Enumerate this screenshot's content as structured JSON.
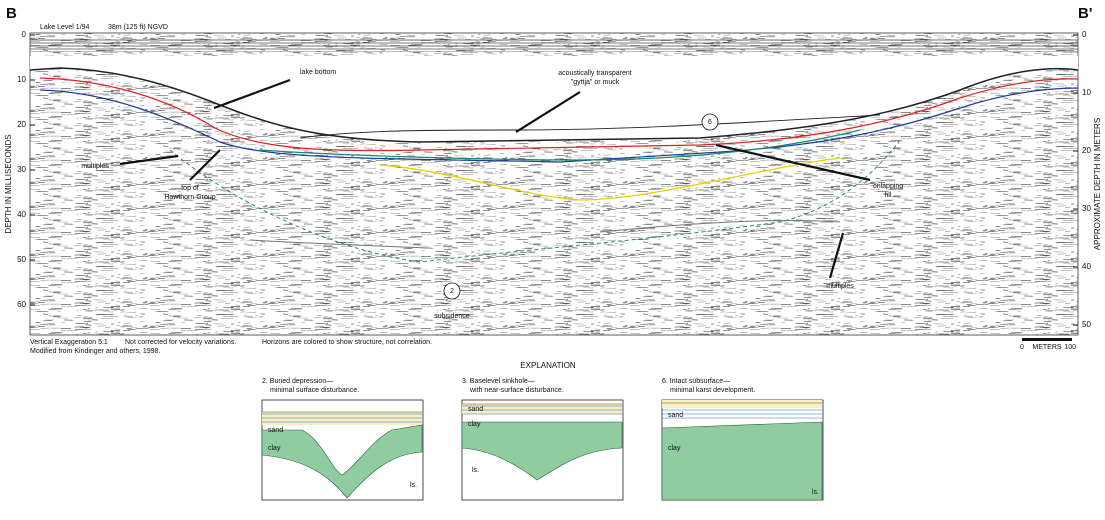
{
  "header": {
    "left_label": "B",
    "right_label": "B'",
    "lake_level": "Lake Level 1/94",
    "elevation": "38m (125 ft) NGVD"
  },
  "axes": {
    "left": {
      "title": "DEPTH IN MILLISECONDS",
      "ticks": [
        "0",
        "10",
        "20",
        "30",
        "40",
        "50",
        "60"
      ]
    },
    "right": {
      "title": "APPROXIMATE DEPTH IN METERS",
      "ticks": [
        "0",
        "10",
        "20",
        "30",
        "40",
        "50"
      ]
    }
  },
  "annotations": {
    "lake_bottom": "lake bottom",
    "gyttja": [
      "acoustically transparent",
      "\"gyttja\" or muck"
    ],
    "marker_6": "6",
    "multiples_left": "multiples",
    "hawthorn": [
      "top of",
      "Hawthorn Group"
    ],
    "onlapping": [
      "onlapping",
      "fill"
    ],
    "multiples_right": "multiples",
    "marker_2": "2",
    "subsidence": "subsidence"
  },
  "notes": [
    "Vertical Exaggeration 5:1",
    "Not corrected for velocity variations.",
    "Horizons are colored to show structure, not correlation.",
    "Modified from Kindinger and others, 1998."
  ],
  "scale_bar": {
    "start": "0",
    "label": "METERS",
    "end": "100"
  },
  "explanation": {
    "title": "EXPLANATION",
    "panels": [
      {
        "caption": [
          "2. Buried depression—",
          "minimal surface disturbance."
        ],
        "labels": [
          "sand",
          "clay",
          "ls."
        ]
      },
      {
        "caption": [
          "3. Baselevel sinkhole—",
          "with near-surface disturbance."
        ],
        "labels": [
          "sand",
          "clay",
          "ls."
        ]
      },
      {
        "caption": [
          "6. Intact subsurface—",
          "minimal karst development."
        ],
        "labels": [
          "sand",
          "clay",
          "ls."
        ]
      }
    ]
  }
}
